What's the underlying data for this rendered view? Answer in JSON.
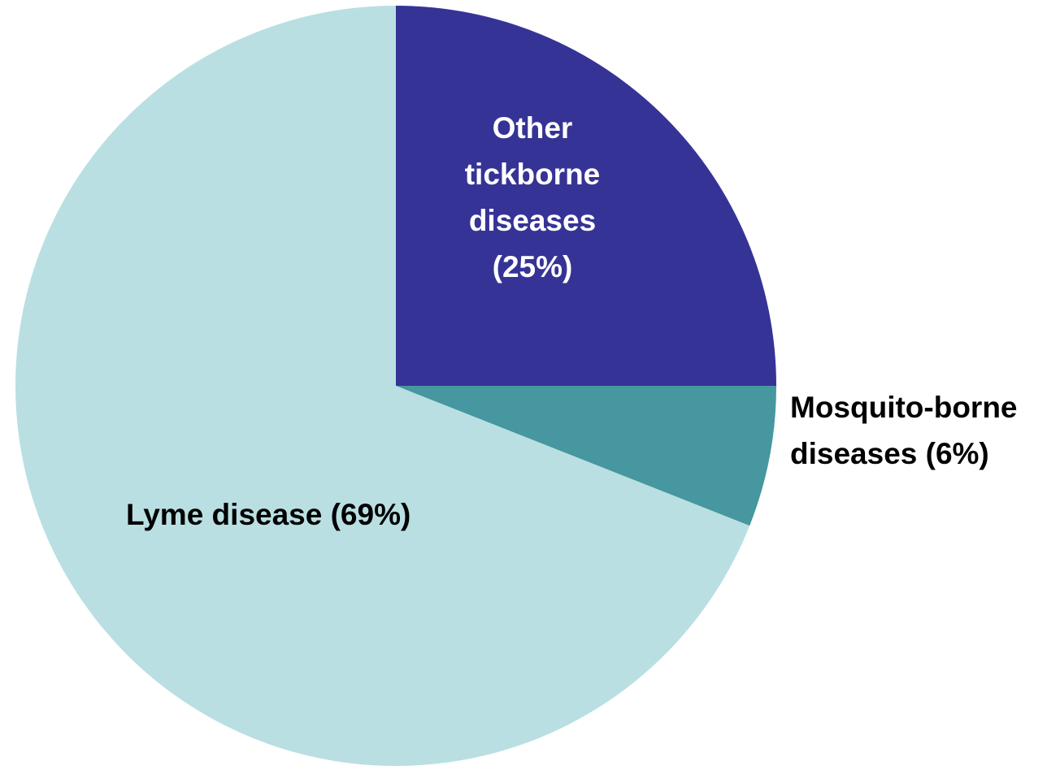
{
  "chart_data": {
    "type": "pie",
    "title": "",
    "slices": [
      {
        "name": "Other tickborne diseases",
        "value": 25,
        "label_lines": [
          "Other",
          "tickborne",
          "diseases",
          "(25%)"
        ],
        "color": "#363396",
        "label_color": "#ffffff"
      },
      {
        "name": "Mosquito-borne diseases",
        "value": 6,
        "label_lines": [
          "Mosquito-borne",
          "diseases (6%)"
        ],
        "color": "#46979f",
        "label_color": "#000000"
      },
      {
        "name": "Lyme disease",
        "value": 69,
        "label_lines": [
          "Lyme disease (69%)"
        ],
        "color": "#b9dfe2",
        "label_color": "#000000"
      }
    ],
    "start_angle_deg": 0,
    "direction": "clockwise",
    "legend": "none",
    "grid": false
  }
}
